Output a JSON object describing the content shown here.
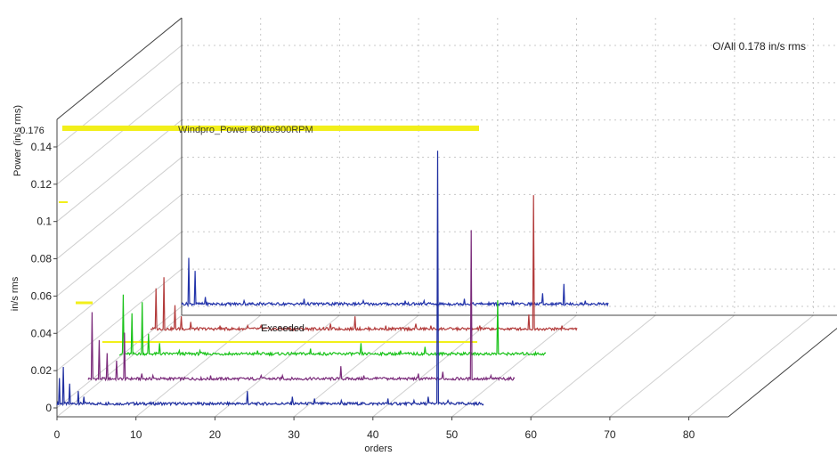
{
  "chart_data": {
    "type": "line",
    "title": "",
    "overall_text": "O/All 0.178 in/s rms",
    "xlabel": "orders",
    "ylabel": "in/s rms",
    "depth_axis_label": "Power (in/s rms)",
    "xlim": [
      0,
      85
    ],
    "ylim": [
      -0.005,
      0.15
    ],
    "x_ticks": [
      "0",
      "10",
      "20",
      "30",
      "40",
      "50",
      "60",
      "70",
      "80"
    ],
    "y_ticks": [
      "0",
      "0.02",
      "0.04",
      "0.06",
      "0.08",
      "0.1",
      "0.12",
      "0.14"
    ],
    "depth_axis_top_tick": "0.176",
    "threshold_label": "Exceeded",
    "alarm_label": "Windpro_Power 800to900RPM",
    "grid": true,
    "series": [
      {
        "color": "#1f2fa0",
        "peaks": [
          [
            0.3,
            0.016
          ],
          [
            0.8,
            0.022
          ],
          [
            1.6,
            0.013
          ],
          [
            2.7,
            0.009
          ],
          [
            3.4,
            0.006
          ],
          [
            6.5,
            0.003
          ],
          [
            9.7,
            0.003
          ],
          [
            13.1,
            0.003
          ],
          [
            24.1,
            0.009
          ],
          [
            29.8,
            0.006
          ],
          [
            32.6,
            0.005
          ],
          [
            36,
            0.004
          ],
          [
            41.9,
            0.005
          ],
          [
            45.2,
            0.004
          ],
          [
            47.0,
            0.006
          ],
          [
            48.2,
            0.138
          ],
          [
            49.5,
            0.004
          ],
          [
            51.3,
            0.003
          ]
        ]
      },
      {
        "color": "#7a2a7a",
        "peaks": [
          [
            0.5,
            0.038
          ],
          [
            1.4,
            0.023
          ],
          [
            2.4,
            0.016
          ],
          [
            3.6,
            0.012
          ],
          [
            4.6,
            0.027
          ],
          [
            6.8,
            0.005
          ],
          [
            8.2,
            0.004
          ],
          [
            15.5,
            0.004
          ],
          [
            21.9,
            0.004
          ],
          [
            24.6,
            0.004
          ],
          [
            32.0,
            0.009
          ],
          [
            34.9,
            0.004
          ],
          [
            36.4,
            0.003
          ],
          [
            37.5,
            0.003
          ],
          [
            41.8,
            0.005
          ],
          [
            44.9,
            0.006
          ],
          [
            48.5,
            0.082
          ],
          [
            51.0,
            0.004
          ],
          [
            54.6,
            0.003
          ]
        ]
      },
      {
        "color": "#19c219",
        "peaks": [
          [
            0.5,
            0.034
          ],
          [
            1.6,
            0.024
          ],
          [
            2.9,
            0.03
          ],
          [
            3.7,
            0.013
          ],
          [
            5.1,
            0.008
          ],
          [
            7.6,
            0.004
          ],
          [
            10.2,
            0.004
          ],
          [
            13.9,
            0.003
          ],
          [
            17.5,
            0.004
          ],
          [
            24.2,
            0.005
          ],
          [
            30.6,
            0.008
          ],
          [
            35.6,
            0.004
          ],
          [
            38.7,
            0.006
          ],
          [
            42.1,
            0.003
          ],
          [
            47.9,
            0.031
          ],
          [
            52.7,
            0.003
          ],
          [
            59.9,
            0.003
          ],
          [
            66.3,
            0.008
          ],
          [
            73.0,
            0.004
          ],
          [
            76.1,
            0.004
          ]
        ]
      },
      {
        "color": "#b23a3a",
        "peaks": [
          [
            0.7,
            0.024
          ],
          [
            1.7,
            0.03
          ],
          [
            3.1,
            0.015
          ],
          [
            3.9,
            0.009
          ],
          [
            5.1,
            0.006
          ],
          [
            8.8,
            0.004
          ],
          [
            12.3,
            0.004
          ],
          [
            14.0,
            0.004
          ],
          [
            22.8,
            0.005
          ],
          [
            25.9,
            0.009
          ],
          [
            29.8,
            0.004
          ],
          [
            33.6,
            0.005
          ],
          [
            35.5,
            0.004
          ],
          [
            41.7,
            0.004
          ],
          [
            47.9,
            0.01
          ],
          [
            48.5,
            0.074
          ],
          [
            52.1,
            0.004
          ],
          [
            59.7,
            0.004
          ],
          [
            63.1,
            0.004
          ],
          [
            67.8,
            0.003
          ],
          [
            72.1,
            0.003
          ],
          [
            75.5,
            0.005
          ],
          [
            81.2,
            0.004
          ]
        ]
      },
      {
        "color": "#2233aa",
        "peaks": [
          [
            0.9,
            0.027
          ],
          [
            1.7,
            0.02
          ],
          [
            3.0,
            0.006
          ],
          [
            7.9,
            0.004
          ],
          [
            9.9,
            0.003
          ],
          [
            15.5,
            0.005
          ],
          [
            20.6,
            0.003
          ],
          [
            23.0,
            0.004
          ],
          [
            28.3,
            0.004
          ],
          [
            30.7,
            0.004
          ],
          [
            35.8,
            0.005
          ],
          [
            38.9,
            0.003
          ],
          [
            41.9,
            0.004
          ],
          [
            45.7,
            0.008
          ],
          [
            48.4,
            0.013
          ],
          [
            51.1,
            0.004
          ]
        ]
      }
    ]
  }
}
